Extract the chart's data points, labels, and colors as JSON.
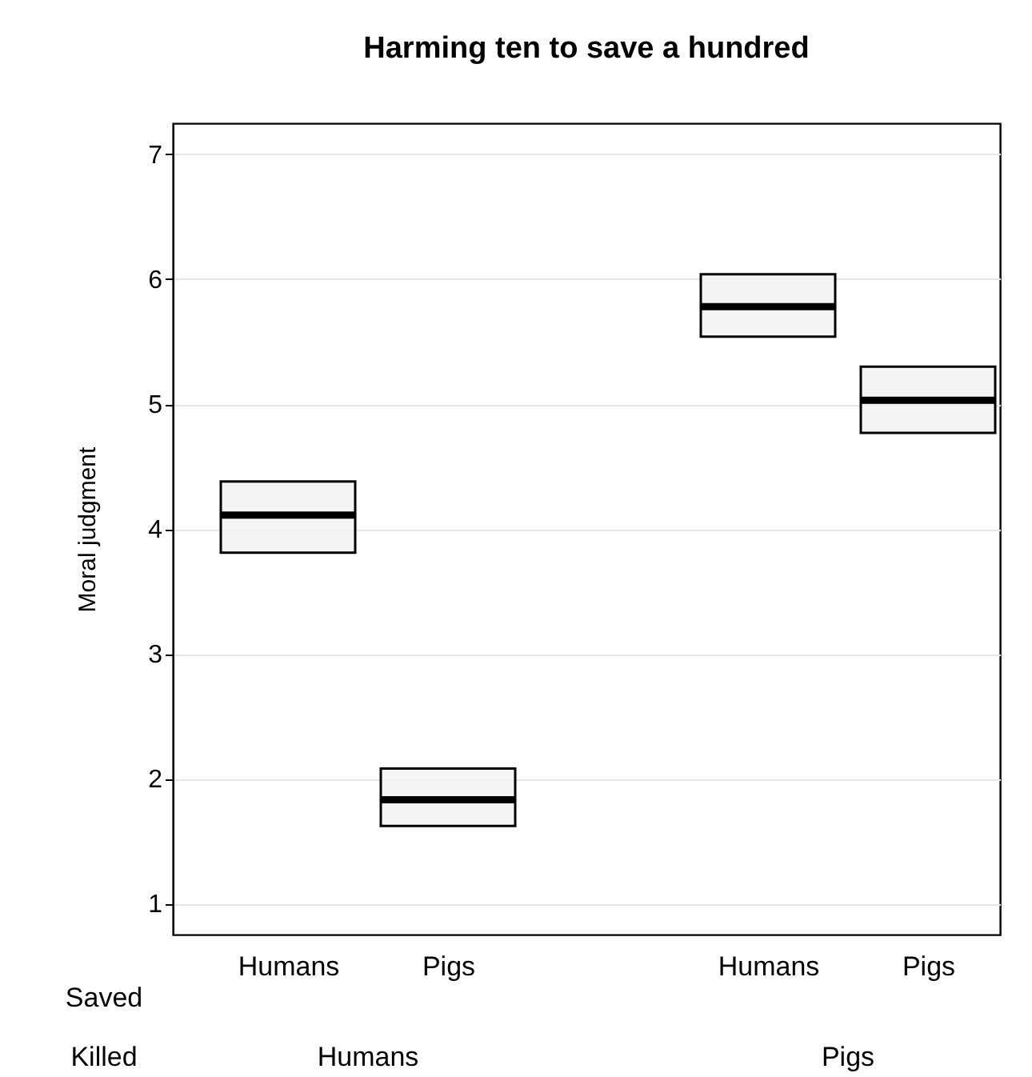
{
  "chart_data": {
    "title": "Harming ten to save a hundred",
    "ylabel": "Moral judgment",
    "categories": [
      "Humans",
      "Pigs",
      "Humans",
      "Pigs"
    ],
    "annotations": [
      "Saved",
      "Killed",
      "Humans",
      "Pigs"
    ],
    "type": "box",
    "color": "#000000",
    "boxes": [
      {
        "q1": 3.81,
        "median": 4.11,
        "q3": 4.38
      },
      {
        "q1": 1.62,
        "median": 1.83,
        "q3": 2.08
      },
      {
        "q1": 5.54,
        "median": 5.78,
        "q3": 6.04
      },
      {
        "q1": 4.77,
        "median": 5.03,
        "q3": 5.3
      }
    ],
    "ylim": [
      0.75,
      7.25
    ],
    "yticks": [
      1,
      2,
      3,
      4,
      5,
      6,
      7
    ],
    "grid": "y"
  }
}
